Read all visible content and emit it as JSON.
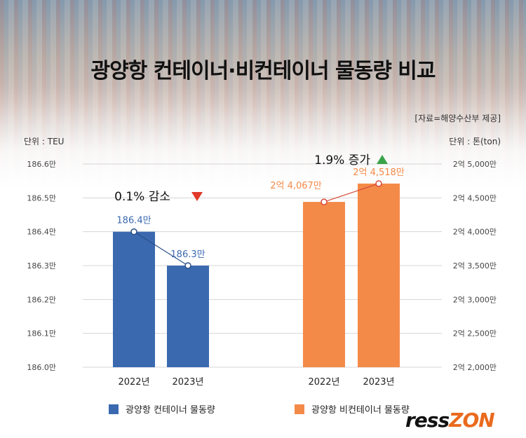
{
  "title": "광양항 컨테이너·비컨테이너 물동량 비교",
  "source": "[자료=해양수산부 제공]",
  "unit_left": "단위 : TEU",
  "unit_right": "단위 : 톤(ton)",
  "colors": {
    "container": "#3a69b0",
    "noncontainer": "#f48a48",
    "down": "#e03a2a",
    "up": "#3aa34a",
    "grid": "#d5d5d5"
  },
  "legend": {
    "container": "광양항 컨테이너 물동량",
    "noncontainer": "광양항 비컨테이너 물동량"
  },
  "logo": {
    "part1": "ress",
    "part2": "ZON"
  },
  "chart_data": [
    {
      "type": "bar",
      "categories": [
        "2022년",
        "2023년"
      ],
      "values": [
        186.4,
        186.3
      ],
      "data_labels": [
        "186.4만",
        "186.3만"
      ],
      "ylim": [
        186.0,
        186.6
      ],
      "yticks": [
        "186.0만",
        "186.1만",
        "186.2만",
        "186.3만",
        "186.4만",
        "186.5만",
        "186.6만"
      ],
      "change_label": "0.1% 감소",
      "change_direction": "down"
    },
    {
      "type": "bar",
      "categories": [
        "2022년",
        "2023년"
      ],
      "values": [
        240670000,
        245180000
      ],
      "data_labels": [
        "2억 4,067만",
        "2억 4,518만"
      ],
      "ylim": [
        200000000,
        250000000
      ],
      "yticks": [
        "2억 2,000만",
        "2억 2,500만",
        "2억 3,000만",
        "2억 3,500만",
        "2억 4,000만",
        "2억 4,500만",
        "2억 5,000만"
      ],
      "change_label": "1.9% 증가",
      "change_direction": "up"
    }
  ]
}
